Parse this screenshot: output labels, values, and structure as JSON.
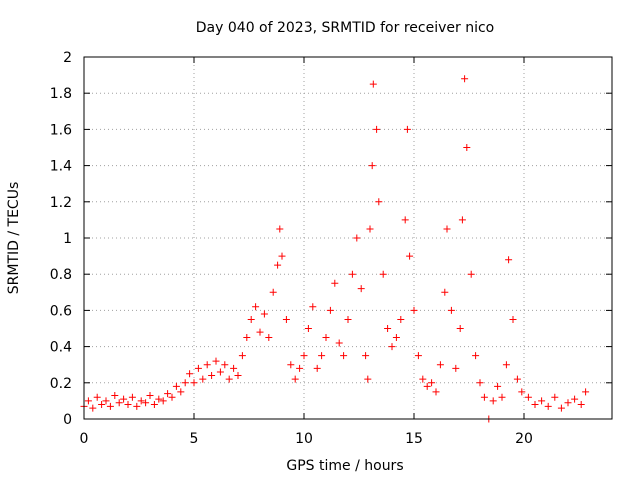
{
  "chart_data": {
    "type": "scatter",
    "title": "Day 040 of 2023, SRMTID for receiver nico",
    "xlabel": "GPS time / hours",
    "ylabel": "SRMTID / TECUs",
    "xlim": [
      0,
      24
    ],
    "ylim": [
      0,
      2
    ],
    "xticks": [
      0,
      5,
      10,
      15,
      20
    ],
    "xtick_labels": [
      "0",
      "5",
      "10",
      "15",
      "20"
    ],
    "yticks": [
      0,
      0.2,
      0.4,
      0.6,
      0.8,
      1,
      1.2,
      1.4,
      1.6,
      1.8,
      2
    ],
    "ytick_labels": [
      "0",
      "0.2",
      "0.4",
      "0.6",
      "0.8",
      "1",
      "1.2",
      "1.4",
      "1.6",
      "1.8",
      "2"
    ],
    "grid": true,
    "marker": "+",
    "color": "#ff0000",
    "series": [
      {
        "name": "SRMTID",
        "points": [
          [
            0.0,
            0.07
          ],
          [
            0.2,
            0.1
          ],
          [
            0.4,
            0.06
          ],
          [
            0.6,
            0.12
          ],
          [
            0.8,
            0.08
          ],
          [
            1.0,
            0.1
          ],
          [
            1.2,
            0.07
          ],
          [
            1.4,
            0.13
          ],
          [
            1.6,
            0.09
          ],
          [
            1.8,
            0.11
          ],
          [
            2.0,
            0.08
          ],
          [
            2.2,
            0.12
          ],
          [
            2.4,
            0.07
          ],
          [
            2.6,
            0.1
          ],
          [
            2.8,
            0.09
          ],
          [
            3.0,
            0.13
          ],
          [
            3.2,
            0.08
          ],
          [
            3.4,
            0.11
          ],
          [
            3.6,
            0.1
          ],
          [
            3.8,
            0.14
          ],
          [
            4.0,
            0.12
          ],
          [
            4.2,
            0.18
          ],
          [
            4.4,
            0.15
          ],
          [
            4.6,
            0.2
          ],
          [
            4.8,
            0.25
          ],
          [
            5.0,
            0.2
          ],
          [
            5.2,
            0.28
          ],
          [
            5.4,
            0.22
          ],
          [
            5.6,
            0.3
          ],
          [
            5.8,
            0.24
          ],
          [
            6.0,
            0.32
          ],
          [
            6.2,
            0.26
          ],
          [
            6.4,
            0.3
          ],
          [
            6.6,
            0.22
          ],
          [
            6.8,
            0.28
          ],
          [
            7.0,
            0.24
          ],
          [
            7.2,
            0.35
          ],
          [
            7.4,
            0.45
          ],
          [
            7.6,
            0.55
          ],
          [
            7.8,
            0.62
          ],
          [
            8.0,
            0.48
          ],
          [
            8.2,
            0.58
          ],
          [
            8.4,
            0.45
          ],
          [
            8.6,
            0.7
          ],
          [
            8.8,
            0.85
          ],
          [
            8.9,
            1.05
          ],
          [
            9.0,
            0.9
          ],
          [
            9.2,
            0.55
          ],
          [
            9.4,
            0.3
          ],
          [
            9.6,
            0.22
          ],
          [
            9.8,
            0.28
          ],
          [
            10.0,
            0.35
          ],
          [
            10.2,
            0.5
          ],
          [
            10.4,
            0.62
          ],
          [
            10.6,
            0.28
          ],
          [
            10.8,
            0.35
          ],
          [
            11.0,
            0.45
          ],
          [
            11.2,
            0.6
          ],
          [
            11.4,
            0.75
          ],
          [
            11.6,
            0.42
          ],
          [
            11.8,
            0.35
          ],
          [
            12.0,
            0.55
          ],
          [
            12.2,
            0.8
          ],
          [
            12.4,
            1.0
          ],
          [
            12.6,
            0.72
          ],
          [
            12.8,
            0.35
          ],
          [
            12.9,
            0.22
          ],
          [
            13.0,
            1.05
          ],
          [
            13.1,
            1.4
          ],
          [
            13.15,
            1.85
          ],
          [
            13.3,
            1.6
          ],
          [
            13.4,
            1.2
          ],
          [
            13.6,
            0.8
          ],
          [
            13.8,
            0.5
          ],
          [
            14.0,
            0.4
          ],
          [
            14.2,
            0.45
          ],
          [
            14.4,
            0.55
          ],
          [
            14.6,
            1.1
          ],
          [
            14.7,
            1.6
          ],
          [
            14.8,
            0.9
          ],
          [
            15.0,
            0.6
          ],
          [
            15.2,
            0.35
          ],
          [
            15.4,
            0.22
          ],
          [
            15.6,
            0.18
          ],
          [
            15.8,
            0.2
          ],
          [
            16.0,
            0.15
          ],
          [
            16.2,
            0.3
          ],
          [
            16.4,
            0.7
          ],
          [
            16.5,
            1.05
          ],
          [
            16.7,
            0.6
          ],
          [
            16.9,
            0.28
          ],
          [
            17.1,
            0.5
          ],
          [
            17.2,
            1.1
          ],
          [
            17.3,
            1.88
          ],
          [
            17.4,
            1.5
          ],
          [
            17.6,
            0.8
          ],
          [
            17.8,
            0.35
          ],
          [
            18.0,
            0.2
          ],
          [
            18.2,
            0.12
          ],
          [
            18.4,
            0.0
          ],
          [
            18.6,
            0.1
          ],
          [
            18.8,
            0.18
          ],
          [
            19.0,
            0.12
          ],
          [
            19.2,
            0.3
          ],
          [
            19.3,
            0.88
          ],
          [
            19.5,
            0.55
          ],
          [
            19.7,
            0.22
          ],
          [
            19.9,
            0.15
          ],
          [
            20.2,
            0.12
          ],
          [
            20.5,
            0.08
          ],
          [
            20.8,
            0.1
          ],
          [
            21.1,
            0.07
          ],
          [
            21.4,
            0.12
          ],
          [
            21.7,
            0.06
          ],
          [
            22.0,
            0.09
          ],
          [
            22.3,
            0.11
          ],
          [
            22.6,
            0.08
          ],
          [
            22.8,
            0.15
          ]
        ]
      }
    ]
  }
}
